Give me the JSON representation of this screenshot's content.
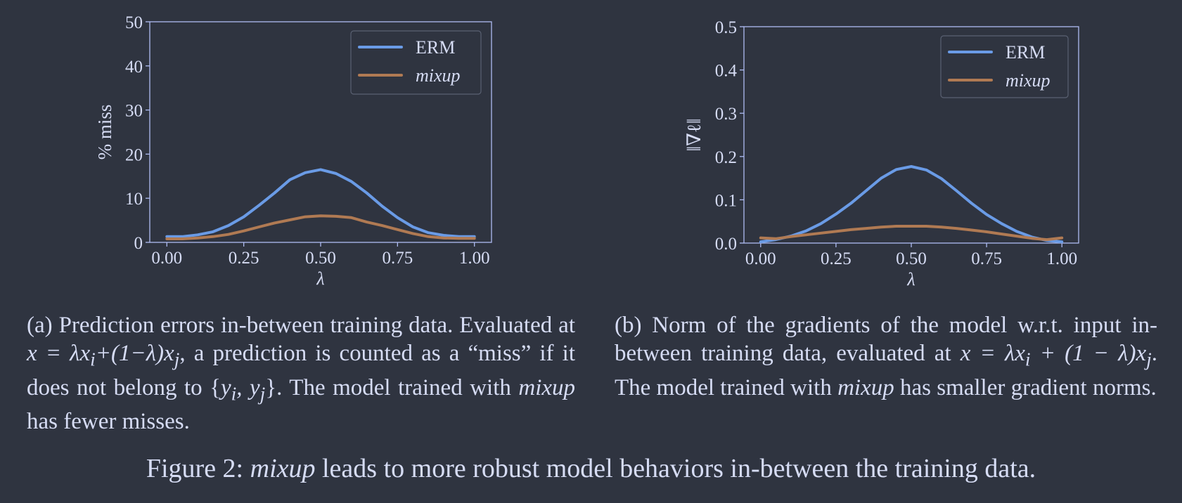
{
  "chart_data": [
    {
      "type": "line",
      "xlabel": "λ",
      "ylabel": "% miss",
      "xlim": [
        0,
        1
      ],
      "ylim": [
        0,
        50
      ],
      "xticks": [
        "0.00",
        "0.25",
        "0.50",
        "0.75",
        "1.00"
      ],
      "yticks": [
        "0",
        "10",
        "20",
        "30",
        "40",
        "50"
      ],
      "legend_position": "top-right",
      "grid": false,
      "x": [
        0.0,
        0.05,
        0.1,
        0.15,
        0.2,
        0.25,
        0.3,
        0.35,
        0.4,
        0.45,
        0.5,
        0.55,
        0.6,
        0.65,
        0.7,
        0.75,
        0.8,
        0.85,
        0.9,
        0.95,
        1.0
      ],
      "series": [
        {
          "name": "ERM",
          "style": "normal",
          "color": "#6a9be6",
          "values": [
            1.3,
            1.3,
            1.7,
            2.4,
            3.8,
            5.8,
            8.4,
            11.2,
            14.2,
            15.8,
            16.5,
            15.6,
            13.8,
            11.2,
            8.2,
            5.6,
            3.5,
            2.2,
            1.6,
            1.3,
            1.3
          ]
        },
        {
          "name": "mixup",
          "style": "italic",
          "color": "#b07a53",
          "values": [
            0.8,
            0.8,
            1.0,
            1.3,
            1.8,
            2.6,
            3.5,
            4.4,
            5.1,
            5.8,
            6.0,
            5.9,
            5.6,
            4.6,
            3.8,
            2.9,
            2.0,
            1.3,
            1.0,
            0.9,
            0.9
          ]
        }
      ]
    },
    {
      "type": "line",
      "xlabel": "λ",
      "ylabel": "‖∇ℓ‖",
      "xlim": [
        0,
        1
      ],
      "ylim": [
        0,
        0.5
      ],
      "xticks": [
        "0.00",
        "0.25",
        "0.50",
        "0.75",
        "1.00"
      ],
      "yticks": [
        "0.0",
        "0.1",
        "0.2",
        "0.3",
        "0.4",
        "0.5"
      ],
      "legend_position": "top-right",
      "grid": false,
      "x": [
        0.0,
        0.05,
        0.1,
        0.15,
        0.2,
        0.25,
        0.3,
        0.35,
        0.4,
        0.45,
        0.5,
        0.55,
        0.6,
        0.65,
        0.7,
        0.75,
        0.8,
        0.85,
        0.9,
        0.95,
        1.0
      ],
      "series": [
        {
          "name": "ERM",
          "style": "normal",
          "color": "#6a9be6",
          "values": [
            0.003,
            0.008,
            0.016,
            0.028,
            0.045,
            0.067,
            0.092,
            0.121,
            0.15,
            0.17,
            0.177,
            0.169,
            0.149,
            0.121,
            0.092,
            0.066,
            0.045,
            0.027,
            0.014,
            0.006,
            0.003
          ]
        },
        {
          "name": "mixup",
          "style": "italic",
          "color": "#b07a53",
          "values": [
            0.012,
            0.01,
            0.015,
            0.019,
            0.023,
            0.027,
            0.031,
            0.034,
            0.037,
            0.039,
            0.039,
            0.039,
            0.037,
            0.034,
            0.03,
            0.026,
            0.021,
            0.016,
            0.011,
            0.008,
            0.012
          ]
        }
      ]
    }
  ],
  "captions": {
    "a": {
      "t1": "(a) Prediction errors in-between training data. Evaluated at ",
      "m1": "x = λx",
      "s1": "i",
      "m2": "+(1−λ)x",
      "s2": "j",
      "t2": ", a prediction is counted as a “miss” if it does not belong to {",
      "m3": "y",
      "s3": "i",
      "m4": ", y",
      "s4": "j",
      "t3": "}. The model trained with ",
      "em": "mixup",
      "t4": " has fewer misses."
    },
    "b": {
      "t1": "(b) Norm of the gradients of the model w.r.t. input in-between training data, evaluated at ",
      "m1": "x = λx",
      "s1": "i",
      "m2": " + (1 − λ)x",
      "s2": "j",
      "t2": ". The model trained with ",
      "em": "mixup",
      "t3": " has smaller gradient norms."
    }
  },
  "figure_caption": {
    "prefix": "Figure 2: ",
    "em": "mixup",
    "rest": " leads to more robust model behaviors in-between the training data."
  }
}
